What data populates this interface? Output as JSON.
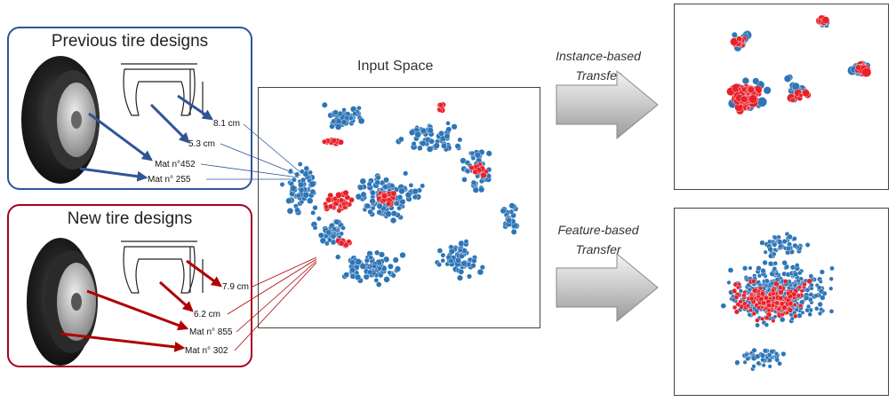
{
  "panels": {
    "previous": {
      "title": "Previous tire designs",
      "border_color": "#2f5597",
      "labels": [
        "8.1 cm",
        "5.3 cm",
        "Mat n°452",
        "Mat n° 255"
      ],
      "arrow_color": "#2f5597"
    },
    "new": {
      "title": "New tire designs",
      "border_color": "#a50021",
      "labels": [
        "7.9 cm",
        "6.2 cm",
        "Mat n° 855",
        "Mat n° 302"
      ],
      "arrow_color": "#b00000"
    }
  },
  "input_space": {
    "title": "Input Space"
  },
  "transfers": {
    "instance": {
      "line1": "Instance-based",
      "line2": "Transfer"
    },
    "feature": {
      "line1": "Feature-based",
      "line2": "Transfer"
    }
  },
  "colors": {
    "blue_point": "#2e75b6",
    "red_point": "#e8202a"
  },
  "icons": [
    "tire-icon",
    "tire-cross-section-icon",
    "right-arrow-icon"
  ]
}
